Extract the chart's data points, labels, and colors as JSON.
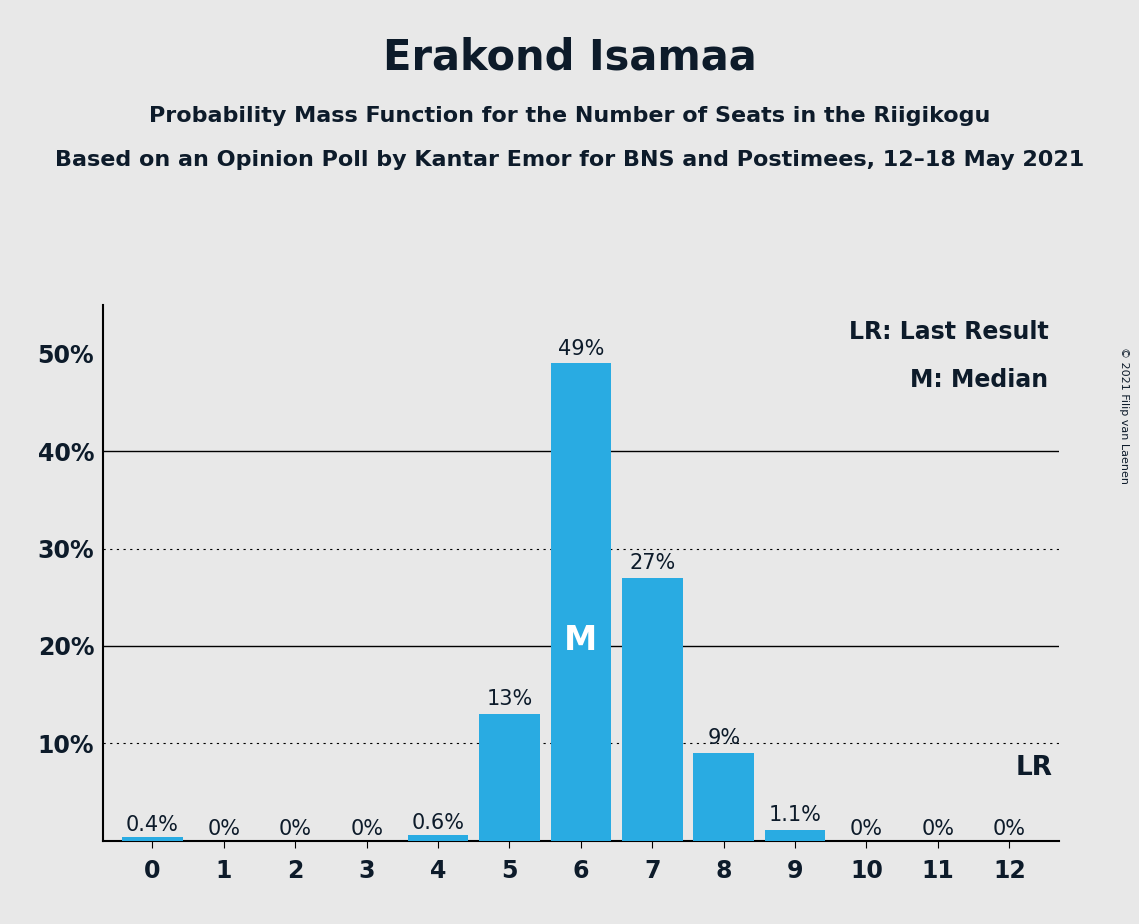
{
  "title": "Erakond Isamaa",
  "subtitle1": "Probability Mass Function for the Number of Seats in the Riigikogu",
  "subtitle2": "Based on an Opinion Poll by Kantar Emor for BNS and Postimees, 12–18 May 2021",
  "copyright": "© 2021 Filip van Laenen",
  "categories": [
    0,
    1,
    2,
    3,
    4,
    5,
    6,
    7,
    8,
    9,
    10,
    11,
    12
  ],
  "values": [
    0.4,
    0.0,
    0.0,
    0.0,
    0.6,
    13.0,
    49.0,
    27.0,
    9.0,
    1.1,
    0.0,
    0.0,
    0.0
  ],
  "labels": [
    "0.4%",
    "0%",
    "0%",
    "0%",
    "0.6%",
    "13%",
    "49%",
    "27%",
    "9%",
    "1.1%",
    "0%",
    "0%",
    "0%"
  ],
  "bar_color": "#29ABE2",
  "background_color": "#E8E8E8",
  "median_seat": 6,
  "median_label": "M",
  "lr_seat": 12,
  "lr_label": "LR",
  "legend_lr": "LR: Last Result",
  "legend_m": "M: Median",
  "ylim": [
    0,
    55
  ],
  "solid_yticks": [
    20,
    40
  ],
  "dotted_yticks": [
    10,
    30
  ],
  "ytick_positions": [
    0,
    10,
    20,
    30,
    40,
    50
  ],
  "ytick_labels": [
    "",
    "10%",
    "20%",
    "30%",
    "40%",
    "50%"
  ],
  "title_fontsize": 30,
  "subtitle_fontsize": 16,
  "axis_fontsize": 17,
  "label_fontsize": 15,
  "median_fontsize": 24,
  "legend_fontsize": 17,
  "text_color": "#0D1B2A"
}
